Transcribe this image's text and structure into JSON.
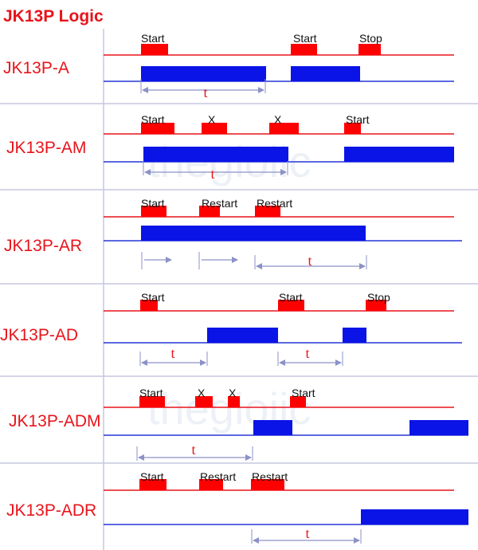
{
  "title": "JK13P Logic",
  "watermark": "thegioiic",
  "colors": {
    "trigger": "#ff0000",
    "trigger_line": "#e8141b",
    "output": "#0a14e6",
    "output_line": "#2636d6",
    "timer_arrow": "#8c92c8",
    "separator": "#c5c8de"
  },
  "modes": [
    {
      "label": "JK13P-A",
      "pulses": [
        {
          "label": "Start"
        },
        {
          "label": "Start"
        },
        {
          "label": "Stop"
        }
      ],
      "timers": [
        {
          "label": "t"
        }
      ]
    },
    {
      "label": "JK13P-AM",
      "pulses": [
        {
          "label": "Start"
        },
        {
          "label": "X"
        },
        {
          "label": "X"
        },
        {
          "label": "Start"
        }
      ],
      "timers": [
        {
          "label": "t"
        }
      ]
    },
    {
      "label": "JK13P-AR",
      "pulses": [
        {
          "label": "Start"
        },
        {
          "label": "Restart"
        },
        {
          "label": "Restart"
        }
      ],
      "timers": [
        {
          "label": ""
        },
        {
          "label": ""
        },
        {
          "label": "t"
        }
      ]
    },
    {
      "label": "JK13P-AD",
      "pulses": [
        {
          "label": "Start"
        },
        {
          "label": "Start"
        },
        {
          "label": "Stop"
        }
      ],
      "timers": [
        {
          "label": "t"
        },
        {
          "label": "t"
        }
      ]
    },
    {
      "label": "JK13P-ADM",
      "pulses": [
        {
          "label": "Start"
        },
        {
          "label": "X"
        },
        {
          "label": "X"
        },
        {
          "label": "Start"
        }
      ],
      "timers": [
        {
          "label": "t"
        }
      ]
    },
    {
      "label": "JK13P-ADR",
      "pulses": [
        {
          "label": "Start"
        },
        {
          "label": "Restart"
        },
        {
          "label": "Restart"
        }
      ],
      "timers": [
        {
          "label": "t"
        }
      ]
    }
  ]
}
